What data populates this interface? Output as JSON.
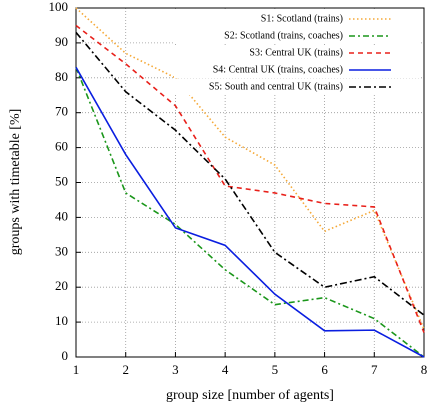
{
  "chart_data": {
    "type": "line",
    "xlabel": "group size [number of agents]",
    "ylabel": "groups with timetable [%]",
    "x": [
      1,
      2,
      3,
      4,
      5,
      6,
      7,
      8
    ],
    "xlim": [
      1,
      8
    ],
    "xticks": [
      1,
      2,
      3,
      4,
      5,
      6,
      7,
      8
    ],
    "ylim": [
      0,
      100
    ],
    "yticks": [
      0,
      10,
      20,
      30,
      40,
      50,
      60,
      70,
      80,
      90,
      100
    ],
    "grid": true,
    "legend": "top-right",
    "series": [
      {
        "name": "S1: Scotland (trains)",
        "color": "#f5a836",
        "dash": "1.5,2.5",
        "values": [
          100,
          87,
          80,
          63,
          55,
          36,
          42,
          8
        ]
      },
      {
        "name": "S2: Scotland (trains, coaches)",
        "color": "#1a961a",
        "dash": "6,3,2,3",
        "values": [
          83,
          47,
          38,
          25,
          15,
          17,
          11,
          0
        ]
      },
      {
        "name": "S3: Central UK (trains)",
        "color": "#e8201a",
        "dash": "5,4",
        "values": [
          95,
          84,
          72,
          49,
          47,
          44,
          43,
          7
        ]
      },
      {
        "name": "S4: Central UK (trains, coaches)",
        "color": "#0a1ee0",
        "dash": "none",
        "values": [
          83,
          58,
          37,
          32,
          18,
          7.5,
          7.7,
          0
        ]
      },
      {
        "name": "S5: South and central UK (trains)",
        "color": "#000000",
        "dash": "7,3,2,3",
        "values": [
          93,
          76,
          65,
          51,
          30,
          20,
          23,
          12
        ]
      }
    ]
  }
}
